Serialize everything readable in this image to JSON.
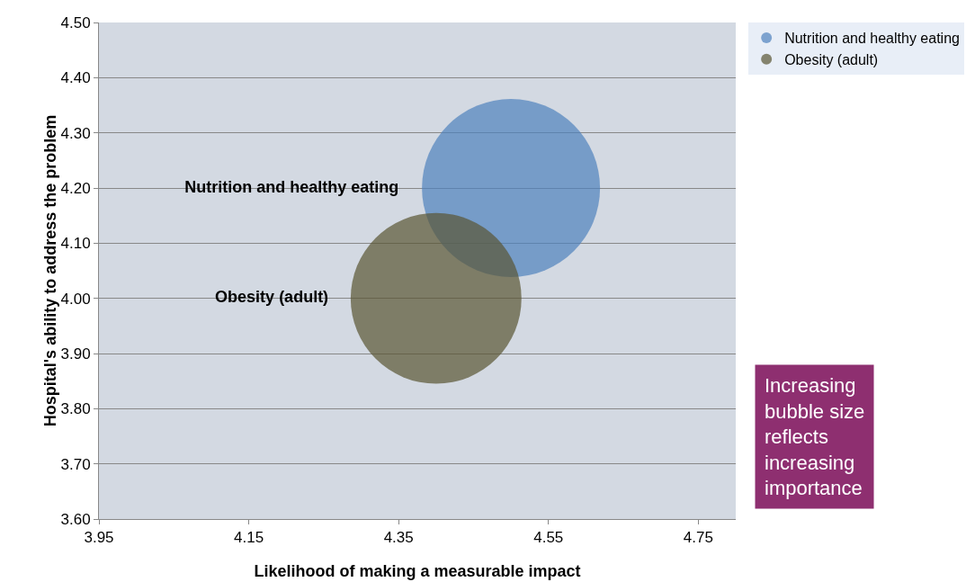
{
  "chart_data": {
    "type": "bubble",
    "xlabel": "Likelihood of making a measurable impact",
    "ylabel": "Hospital's ability to address the problem",
    "xlim": [
      3.95,
      4.8
    ],
    "xticks": [
      3.95,
      4.15,
      4.35,
      4.55,
      4.75
    ],
    "ylim": [
      3.6,
      4.5
    ],
    "yticks": [
      {
        "value": 3.6,
        "label": "3.60"
      },
      {
        "value": 3.7,
        "label": "3.70"
      },
      {
        "value": 3.8,
        "label": "3.80"
      },
      {
        "value": 3.9,
        "label": "3.90"
      },
      {
        "value": 4.0,
        "label": "4.00"
      },
      {
        "value": 4.1,
        "label": "4.10"
      },
      {
        "value": 4.2,
        "label": "4.20"
      },
      {
        "value": 4.3,
        "label": "4.30"
      },
      {
        "value": 4.4,
        "label": "4.40"
      },
      {
        "value": 4.5,
        "label": "4.50"
      }
    ],
    "grid": "y",
    "legend": "right",
    "relative": false,
    "series": [
      {
        "name": "Nutrition and healthy eating",
        "color": "#4f81bd",
        "x": [
          4.5
        ],
        "values": [
          4.2
        ],
        "sizes": [
          1
        ]
      },
      {
        "name": "Obesity (adult)",
        "color": "#5a5533",
        "x": [
          4.4
        ],
        "values": [
          4.0
        ],
        "sizes": [
          0.92
        ]
      }
    ],
    "annotations": [
      "Increasing bubble size reflects increasing importance"
    ]
  }
}
